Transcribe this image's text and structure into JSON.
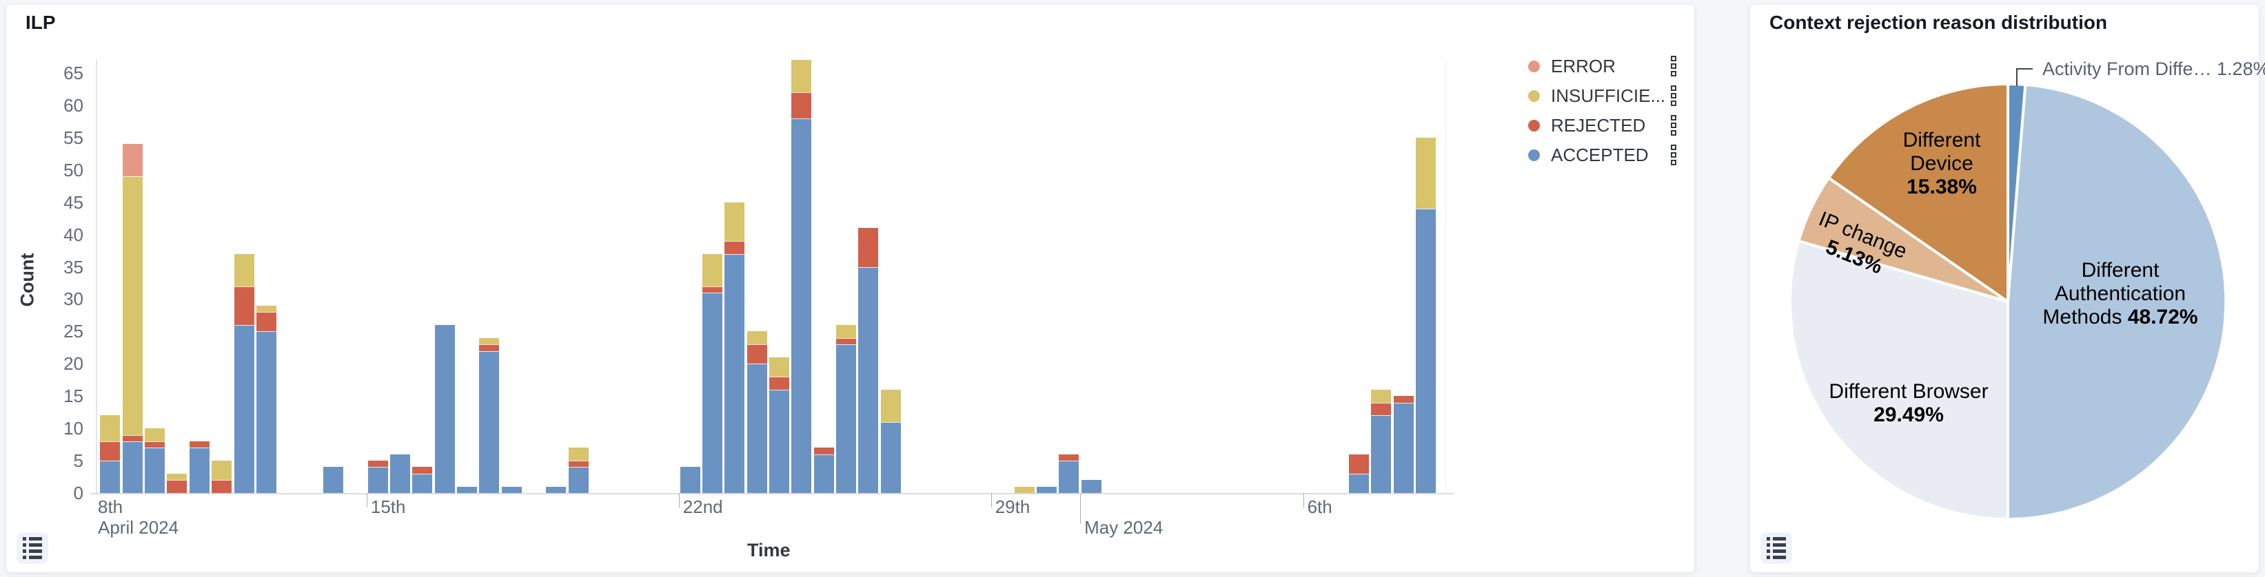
{
  "page": {
    "background": "#F4F6F9"
  },
  "left_panel": {
    "title": "ILP",
    "xlabel": "Time",
    "ylabel": "Count",
    "legend": {
      "items": [
        {
          "label": "ERROR",
          "color": "#E59884"
        },
        {
          "label": "INSUFFICIE...",
          "color": "#D8C46A"
        },
        {
          "label": "REJECTED",
          "color": "#D0604A"
        },
        {
          "label": "ACCEPTED",
          "color": "#6A93C3"
        }
      ],
      "item_menu_icon": "kebab-squares-icon"
    },
    "legend_toggle_icon": "list-icon"
  },
  "right_panel": {
    "title": "Context rejection reason distribution",
    "legend_toggle_icon": "list-icon"
  },
  "chart_data": [
    {
      "type": "bar",
      "stacked": true,
      "title": "ILP",
      "xlabel": "Time",
      "ylabel": "Count",
      "ylim": [
        0,
        65
      ],
      "ytick_step": 5,
      "interval": "12h",
      "grid": false,
      "legend_position": "right",
      "series_order_bottom_to_top": [
        "ACCEPTED",
        "REJECTED",
        "INSUFFICIENT",
        "ERROR"
      ],
      "colors": {
        "ACCEPTED": "#6A93C3",
        "REJECTED": "#D0604A",
        "INSUFFICIENT": "#D8C46A",
        "ERROR": "#E59884"
      },
      "xticks": [
        {
          "pos": 0,
          "label": "8th",
          "sublabel": "April 2024",
          "clamped": true
        },
        {
          "pos": 14,
          "label": "15th"
        },
        {
          "pos": 28,
          "label": "22nd"
        },
        {
          "pos": 42,
          "label": "29th"
        },
        {
          "pos": 46,
          "label": "May 2024",
          "is_month": true
        },
        {
          "pos": 56,
          "label": "6th"
        }
      ],
      "bars": [
        {
          "pos": 2,
          "time": "Apr 9 00:00",
          "ACCEPTED": 5,
          "REJECTED": 3,
          "INSUFFICIENT": 4,
          "ERROR": 0
        },
        {
          "pos": 3,
          "time": "Apr 9 12:00",
          "ACCEPTED": 8,
          "REJECTED": 1,
          "INSUFFICIENT": 40,
          "ERROR": 5
        },
        {
          "pos": 4,
          "time": "Apr 10 00:00",
          "ACCEPTED": 7,
          "REJECTED": 1,
          "INSUFFICIENT": 2,
          "ERROR": 0
        },
        {
          "pos": 5,
          "time": "Apr 10 12:00",
          "ACCEPTED": 0,
          "REJECTED": 2,
          "INSUFFICIENT": 1,
          "ERROR": 0
        },
        {
          "pos": 6,
          "time": "Apr 11 00:00",
          "ACCEPTED": 7,
          "REJECTED": 1,
          "INSUFFICIENT": 0,
          "ERROR": 0
        },
        {
          "pos": 7,
          "time": "Apr 11 12:00",
          "ACCEPTED": 0,
          "REJECTED": 2,
          "INSUFFICIENT": 3,
          "ERROR": 0
        },
        {
          "pos": 8,
          "time": "Apr 12 00:00",
          "ACCEPTED": 26,
          "REJECTED": 6,
          "INSUFFICIENT": 5,
          "ERROR": 0
        },
        {
          "pos": 9,
          "time": "Apr 12 12:00",
          "ACCEPTED": 25,
          "REJECTED": 3,
          "INSUFFICIENT": 1,
          "ERROR": 0
        },
        {
          "pos": 12,
          "time": "Apr 14 00:00",
          "ACCEPTED": 4,
          "REJECTED": 0,
          "INSUFFICIENT": 0,
          "ERROR": 0
        },
        {
          "pos": 14,
          "time": "Apr 15 00:00",
          "ACCEPTED": 4,
          "REJECTED": 1,
          "INSUFFICIENT": 0,
          "ERROR": 0
        },
        {
          "pos": 15,
          "time": "Apr 15 12:00",
          "ACCEPTED": 6,
          "REJECTED": 0,
          "INSUFFICIENT": 0,
          "ERROR": 0
        },
        {
          "pos": 16,
          "time": "Apr 16 00:00",
          "ACCEPTED": 3,
          "REJECTED": 1,
          "INSUFFICIENT": 0,
          "ERROR": 0
        },
        {
          "pos": 17,
          "time": "Apr 16 12:00",
          "ACCEPTED": 26,
          "REJECTED": 0,
          "INSUFFICIENT": 0,
          "ERROR": 0
        },
        {
          "pos": 18,
          "time": "Apr 17 00:00",
          "ACCEPTED": 1,
          "REJECTED": 0,
          "INSUFFICIENT": 0,
          "ERROR": 0
        },
        {
          "pos": 19,
          "time": "Apr 17 12:00",
          "ACCEPTED": 22,
          "REJECTED": 1,
          "INSUFFICIENT": 1,
          "ERROR": 0
        },
        {
          "pos": 20,
          "time": "Apr 18 00:00",
          "ACCEPTED": 1,
          "REJECTED": 0,
          "INSUFFICIENT": 0,
          "ERROR": 0
        },
        {
          "pos": 22,
          "time": "Apr 19 00:00",
          "ACCEPTED": 1,
          "REJECTED": 0,
          "INSUFFICIENT": 0,
          "ERROR": 0
        },
        {
          "pos": 23,
          "time": "Apr 19 12:00",
          "ACCEPTED": 4,
          "REJECTED": 1,
          "INSUFFICIENT": 2,
          "ERROR": 0
        },
        {
          "pos": 28,
          "time": "Apr 22 00:00",
          "ACCEPTED": 4,
          "REJECTED": 0,
          "INSUFFICIENT": 0,
          "ERROR": 0
        },
        {
          "pos": 29,
          "time": "Apr 22 12:00",
          "ACCEPTED": 31,
          "REJECTED": 1,
          "INSUFFICIENT": 5,
          "ERROR": 0
        },
        {
          "pos": 30,
          "time": "Apr 23 00:00",
          "ACCEPTED": 37,
          "REJECTED": 2,
          "INSUFFICIENT": 6,
          "ERROR": 0
        },
        {
          "pos": 31,
          "time": "Apr 23 12:00",
          "ACCEPTED": 20,
          "REJECTED": 3,
          "INSUFFICIENT": 2,
          "ERROR": 0
        },
        {
          "pos": 32,
          "time": "Apr 24 00:00",
          "ACCEPTED": 16,
          "REJECTED": 2,
          "INSUFFICIENT": 3,
          "ERROR": 0
        },
        {
          "pos": 33,
          "time": "Apr 24 12:00",
          "ACCEPTED": 58,
          "REJECTED": 4,
          "INSUFFICIENT": 5,
          "ERROR": 0
        },
        {
          "pos": 34,
          "time": "Apr 25 00:00",
          "ACCEPTED": 6,
          "REJECTED": 1,
          "INSUFFICIENT": 0,
          "ERROR": 0
        },
        {
          "pos": 35,
          "time": "Apr 25 12:00",
          "ACCEPTED": 23,
          "REJECTED": 1,
          "INSUFFICIENT": 2,
          "ERROR": 0
        },
        {
          "pos": 36,
          "time": "Apr 26 00:00",
          "ACCEPTED": 35,
          "REJECTED": 6,
          "INSUFFICIENT": 0,
          "ERROR": 0
        },
        {
          "pos": 37,
          "time": "Apr 26 12:00",
          "ACCEPTED": 11,
          "REJECTED": 0,
          "INSUFFICIENT": 5,
          "ERROR": 0
        },
        {
          "pos": 43,
          "time": "Apr 29 12:00",
          "ACCEPTED": 0,
          "REJECTED": 0,
          "INSUFFICIENT": 1,
          "ERROR": 0
        },
        {
          "pos": 44,
          "time": "Apr 30 00:00",
          "ACCEPTED": 1,
          "REJECTED": 0,
          "INSUFFICIENT": 0,
          "ERROR": 0
        },
        {
          "pos": 45,
          "time": "Apr 30 12:00",
          "ACCEPTED": 5,
          "REJECTED": 1,
          "INSUFFICIENT": 0,
          "ERROR": 0
        },
        {
          "pos": 46,
          "time": "May 1 00:00",
          "ACCEPTED": 2,
          "REJECTED": 0,
          "INSUFFICIENT": 0,
          "ERROR": 0
        },
        {
          "pos": 58,
          "time": "May 7 00:00",
          "ACCEPTED": 3,
          "REJECTED": 3,
          "INSUFFICIENT": 0,
          "ERROR": 0
        },
        {
          "pos": 59,
          "time": "May 7 12:00",
          "ACCEPTED": 12,
          "REJECTED": 2,
          "INSUFFICIENT": 2,
          "ERROR": 0
        },
        {
          "pos": 60,
          "time": "May 8 00:00",
          "ACCEPTED": 14,
          "REJECTED": 1,
          "INSUFFICIENT": 0,
          "ERROR": 0
        },
        {
          "pos": 61,
          "time": "May 8 12:00",
          "ACCEPTED": 44,
          "REJECTED": 0,
          "INSUFFICIENT": 11,
          "ERROR": 0
        }
      ]
    },
    {
      "type": "pie",
      "title": "Context rejection reason distribution",
      "clockwise_from_top": true,
      "slices": [
        {
          "label": "Activity From Diffe…",
          "label_lines": [
            "Activity From Diffe…"
          ],
          "pct": "1.28%",
          "value": 1.28,
          "color": "#6090C0",
          "label_style": "callout"
        },
        {
          "label": "Different Authentication Methods",
          "label_lines": [
            "Different",
            "Authentication",
            "Methods"
          ],
          "pct": "48.72%",
          "value": 48.72,
          "color": "#AFC6DF",
          "pct_inline": true
        },
        {
          "label": "Different Browser",
          "label_lines": [
            "Different Browser"
          ],
          "pct": "29.49%",
          "value": 29.49,
          "color": "#E9EDF3"
        },
        {
          "label": "IP change",
          "label_lines": [
            "IP change"
          ],
          "pct": "5.13%",
          "value": 5.13,
          "color": "#DFB690",
          "label_rotation_deg": 22
        },
        {
          "label": "Different Device",
          "label_lines": [
            "Different",
            "Device"
          ],
          "pct": "15.38%",
          "value": 15.38,
          "color": "#C8894B"
        }
      ]
    }
  ]
}
